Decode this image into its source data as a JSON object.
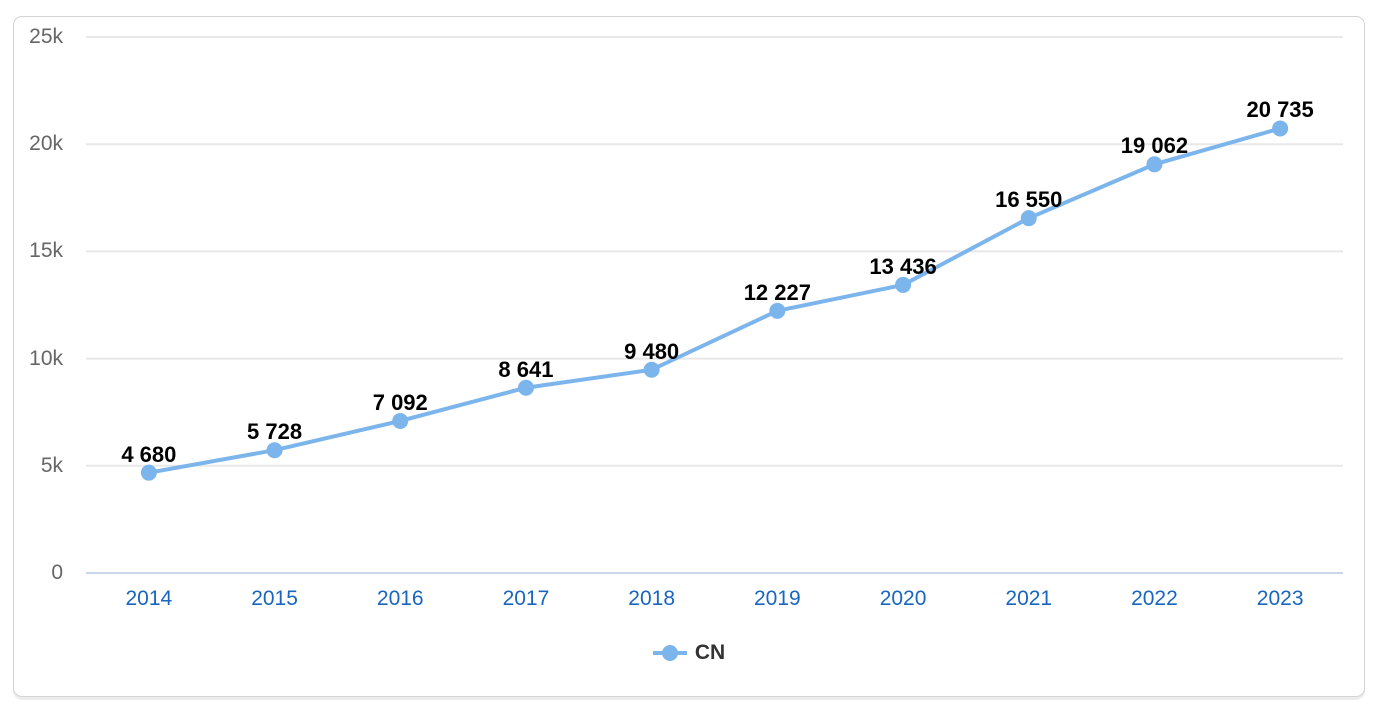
{
  "chart_data": {
    "type": "line",
    "title": "",
    "categories": [
      "2014",
      "2015",
      "2016",
      "2017",
      "2018",
      "2019",
      "2020",
      "2021",
      "2022",
      "2023"
    ],
    "series": [
      {
        "name": "CN",
        "color": "#7cb5ec",
        "values": [
          4680,
          5728,
          7092,
          8641,
          9480,
          12227,
          13436,
          16550,
          19062,
          20735
        ],
        "point_labels": [
          "4 680",
          "5 728",
          "7 092",
          "8 641",
          "9 480",
          "12 227",
          "13 436",
          "16 550",
          "19 062",
          "20 735"
        ]
      }
    ],
    "yticks": [
      {
        "value": 0,
        "label": "0"
      },
      {
        "value": 5000,
        "label": "5k"
      },
      {
        "value": 10000,
        "label": "10k"
      },
      {
        "value": 15000,
        "label": "15k"
      },
      {
        "value": 20000,
        "label": "20k"
      },
      {
        "value": 25000,
        "label": "25k"
      }
    ],
    "ylim": [
      0,
      25000
    ],
    "xlabel": "",
    "ylabel": "",
    "grid": true,
    "legend_position": "bottom-center",
    "legend": [
      {
        "label": "CN",
        "color": "#7cb5ec"
      }
    ]
  },
  "colors": {
    "series_line": "#7cb5ec",
    "grid_line": "#e8e8e8",
    "axis_line": "#ccd6eb",
    "y_label": "#666666",
    "x_label": "#1866c0",
    "data_label": "#000000",
    "legend_text": "#333333",
    "card_border": "#d4d4d4",
    "background": "#ffffff"
  }
}
